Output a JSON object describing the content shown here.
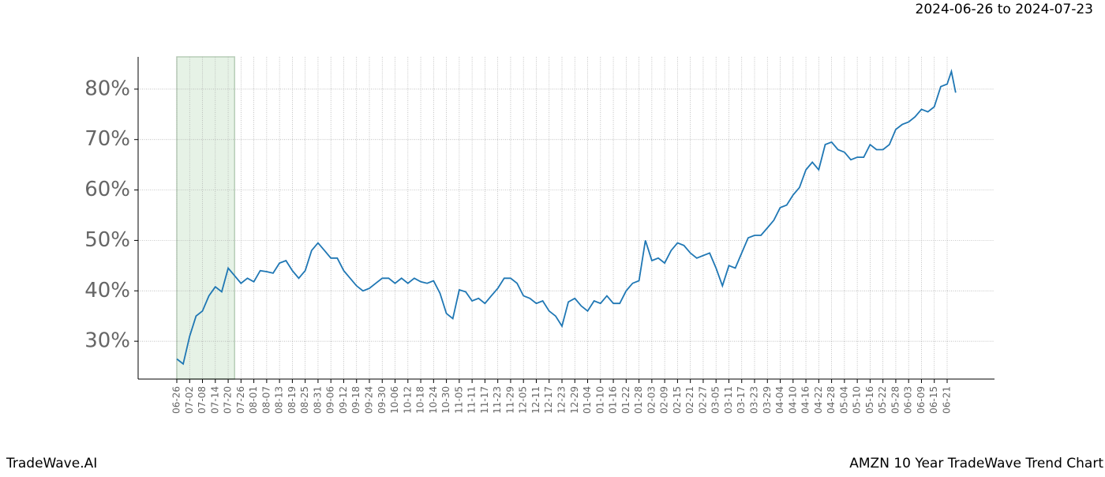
{
  "chart_data": {
    "type": "line",
    "title": "2024-06-26 to 2024-07-23",
    "x": [
      "06-26",
      "06-29",
      "07-02",
      "07-05",
      "07-08",
      "07-11",
      "07-14",
      "07-17",
      "07-20",
      "07-23",
      "07-26",
      "07-29",
      "08-01",
      "08-04",
      "08-07",
      "08-10",
      "08-13",
      "08-16",
      "08-19",
      "08-22",
      "08-25",
      "08-28",
      "08-31",
      "09-03",
      "09-06",
      "09-09",
      "09-12",
      "09-15",
      "09-18",
      "09-21",
      "09-24",
      "09-27",
      "09-30",
      "10-03",
      "10-06",
      "10-09",
      "10-12",
      "10-15",
      "10-18",
      "10-21",
      "10-24",
      "10-27",
      "10-30",
      "11-02",
      "11-05",
      "11-08",
      "11-11",
      "11-14",
      "11-17",
      "11-20",
      "11-23",
      "11-26",
      "11-29",
      "12-02",
      "12-05",
      "12-08",
      "12-11",
      "12-14",
      "12-17",
      "12-20",
      "12-23",
      "12-26",
      "12-29",
      "01-01",
      "01-04",
      "01-07",
      "01-10",
      "01-13",
      "01-16",
      "01-19",
      "01-22",
      "01-25",
      "01-28",
      "01-31",
      "02-03",
      "02-06",
      "02-09",
      "02-12",
      "02-15",
      "02-18",
      "02-21",
      "02-24",
      "02-27",
      "03-02",
      "03-05",
      "03-08",
      "03-11",
      "03-14",
      "03-17",
      "03-20",
      "03-23",
      "03-26",
      "03-29",
      "04-01",
      "04-04",
      "04-07",
      "04-10",
      "04-13",
      "04-16",
      "04-19",
      "04-22",
      "04-25",
      "04-28",
      "05-01",
      "05-04",
      "05-07",
      "05-10",
      "05-13",
      "05-16",
      "05-19",
      "05-22",
      "05-25",
      "05-28",
      "05-31",
      "06-03",
      "06-06",
      "06-09",
      "06-12",
      "06-15",
      "06-18",
      "06-21",
      "06-23",
      "06-25"
    ],
    "series": [
      {
        "color": "#1f77b4",
        "values": [
          26.5,
          25.5,
          31,
          35,
          36,
          39,
          40.8,
          39.8,
          44.5,
          43,
          41.5,
          42.5,
          41.8,
          44,
          43.8,
          43.5,
          45.5,
          46,
          44,
          42.5,
          44,
          48,
          49.5,
          48,
          46.5,
          46.5,
          44,
          42.5,
          41,
          40,
          40.5,
          41.5,
          42.5,
          42.5,
          41.5,
          42.5,
          41.5,
          42.5,
          41.8,
          41.5,
          42,
          39.5,
          35.5,
          34.5,
          40.2,
          39.8,
          38,
          38.5,
          37.5,
          39,
          40.5,
          42.5,
          42.5,
          41.5,
          39,
          38.5,
          37.5,
          38,
          36,
          35,
          33,
          37.8,
          38.5,
          37,
          36,
          38,
          37.5,
          39,
          37.5,
          37.5,
          40,
          41.5,
          42,
          50,
          46,
          46.5,
          45.5,
          48,
          49.5,
          49,
          47.5,
          46.5,
          47,
          47.5,
          44.5,
          41,
          45,
          44.5,
          47.5,
          50.5,
          51,
          51,
          52.5,
          54,
          56.5,
          57,
          59,
          60.5,
          64,
          65.5,
          64,
          69,
          69.5,
          68,
          67.5,
          66,
          66.5,
          66.5,
          69,
          68,
          68,
          69,
          72,
          73,
          73.5,
          74.5,
          76,
          75.5,
          76.5,
          80.5,
          81,
          83.5,
          79.3
        ]
      }
    ],
    "xticks": [
      "06-26",
      "07-02",
      "07-08",
      "07-14",
      "07-20",
      "07-26",
      "08-01",
      "08-07",
      "08-13",
      "08-19",
      "08-25",
      "08-31",
      "09-06",
      "09-12",
      "09-18",
      "09-24",
      "09-30",
      "10-06",
      "10-12",
      "10-18",
      "10-24",
      "10-30",
      "11-05",
      "11-11",
      "11-17",
      "11-23",
      "11-29",
      "12-05",
      "12-11",
      "12-17",
      "12-23",
      "12-29",
      "01-04",
      "01-10",
      "01-16",
      "01-22",
      "01-28",
      "02-03",
      "02-09",
      "02-15",
      "02-21",
      "02-27",
      "03-05",
      "03-11",
      "03-17",
      "03-23",
      "03-29",
      "04-04",
      "04-10",
      "04-16",
      "04-22",
      "04-28",
      "05-04",
      "05-10",
      "05-16",
      "05-22",
      "05-28",
      "06-03",
      "06-09",
      "06-15",
      "06-21"
    ],
    "ylim": [
      22.5,
      86.4
    ],
    "yticks": [
      {
        "value": 30,
        "label": "30%"
      },
      {
        "value": 40,
        "label": "40%"
      },
      {
        "value": 50,
        "label": "50%"
      },
      {
        "value": 60,
        "label": "60%"
      },
      {
        "value": 70,
        "label": "70%"
      },
      {
        "value": 80,
        "label": "80%"
      }
    ],
    "grid": true,
    "shade": {
      "from": "06-26",
      "to": "07-23",
      "color": "#e6f2e6"
    }
  },
  "footer": {
    "left": "TradeWave.AI",
    "right": "AMZN 10 Year TradeWave Trend Chart"
  }
}
